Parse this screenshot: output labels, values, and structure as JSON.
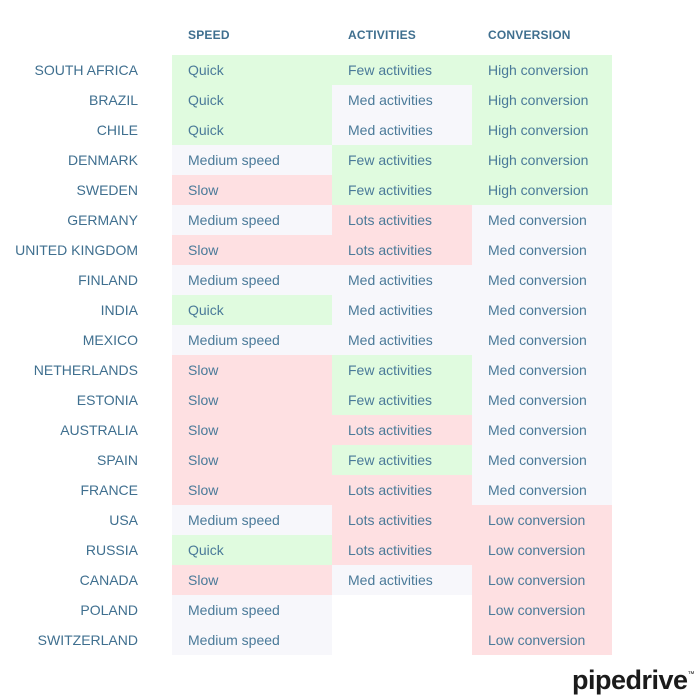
{
  "headers": {
    "speed": "SPEED",
    "activities": "ACTIVITIES",
    "conversion": "CONVERSION"
  },
  "rows": [
    {
      "country": "SOUTH AFRICA",
      "speed": "Quick",
      "speed_level": "good",
      "activities": "Few activities",
      "activities_level": "good",
      "conversion": "High conversion",
      "conversion_level": "good"
    },
    {
      "country": "BRAZIL",
      "speed": "Quick",
      "speed_level": "good",
      "activities": "Med activities",
      "activities_level": "med",
      "conversion": "High conversion",
      "conversion_level": "good"
    },
    {
      "country": "CHILE",
      "speed": "Quick",
      "speed_level": "good",
      "activities": "Med activities",
      "activities_level": "med",
      "conversion": "High conversion",
      "conversion_level": "good"
    },
    {
      "country": "DENMARK",
      "speed": "Medium speed",
      "speed_level": "med",
      "activities": "Few activities",
      "activities_level": "good",
      "conversion": "High conversion",
      "conversion_level": "good"
    },
    {
      "country": "SWEDEN",
      "speed": "Slow",
      "speed_level": "bad",
      "activities": "Few activities",
      "activities_level": "good",
      "conversion": "High conversion",
      "conversion_level": "good"
    },
    {
      "country": "GERMANY",
      "speed": "Medium speed",
      "speed_level": "med",
      "activities": "Lots activities",
      "activities_level": "bad",
      "conversion": "Med conversion",
      "conversion_level": "med"
    },
    {
      "country": "UNITED KINGDOM",
      "speed": "Slow",
      "speed_level": "bad",
      "activities": "Lots activities",
      "activities_level": "bad",
      "conversion": "Med conversion",
      "conversion_level": "med"
    },
    {
      "country": "FINLAND",
      "speed": "Medium speed",
      "speed_level": "med",
      "activities": "Med activities",
      "activities_level": "med",
      "conversion": "Med conversion",
      "conversion_level": "med"
    },
    {
      "country": "INDIA",
      "speed": "Quick",
      "speed_level": "good",
      "activities": "Med activities",
      "activities_level": "med",
      "conversion": "Med conversion",
      "conversion_level": "med"
    },
    {
      "country": "MEXICO",
      "speed": "Medium speed",
      "speed_level": "med",
      "activities": "Med activities",
      "activities_level": "med",
      "conversion": "Med conversion",
      "conversion_level": "med"
    },
    {
      "country": "NETHERLANDS",
      "speed": "Slow",
      "speed_level": "bad",
      "activities": "Few activities",
      "activities_level": "good",
      "conversion": "Med conversion",
      "conversion_level": "med"
    },
    {
      "country": "ESTONIA",
      "speed": "Slow",
      "speed_level": "bad",
      "activities": "Few activities",
      "activities_level": "good",
      "conversion": "Med conversion",
      "conversion_level": "med"
    },
    {
      "country": "AUSTRALIA",
      "speed": "Slow",
      "speed_level": "bad",
      "activities": "Lots activities",
      "activities_level": "bad",
      "conversion": "Med conversion",
      "conversion_level": "med"
    },
    {
      "country": "SPAIN",
      "speed": "Slow",
      "speed_level": "bad",
      "activities": "Few activities",
      "activities_level": "good",
      "conversion": "Med conversion",
      "conversion_level": "med"
    },
    {
      "country": "FRANCE",
      "speed": "Slow",
      "speed_level": "bad",
      "activities": "Lots activities",
      "activities_level": "bad",
      "conversion": "Med conversion",
      "conversion_level": "med"
    },
    {
      "country": "USA",
      "speed": "Medium speed",
      "speed_level": "med",
      "activities": "Lots activities",
      "activities_level": "bad",
      "conversion": "Low conversion",
      "conversion_level": "bad"
    },
    {
      "country": "RUSSIA",
      "speed": "Quick",
      "speed_level": "good",
      "activities": "Lots activities",
      "activities_level": "bad",
      "conversion": "Low conversion",
      "conversion_level": "bad"
    },
    {
      "country": "CANADA",
      "speed": "Slow",
      "speed_level": "bad",
      "activities": "Med activities",
      "activities_level": "med",
      "conversion": "Low conversion",
      "conversion_level": "bad"
    },
    {
      "country": "POLAND",
      "speed": "Medium speed",
      "speed_level": "med",
      "activities": "",
      "activities_level": "none",
      "conversion": "Low conversion",
      "conversion_level": "bad"
    },
    {
      "country": "SWITZERLAND",
      "speed": "Medium speed",
      "speed_level": "med",
      "activities": "",
      "activities_level": "none",
      "conversion": "Low conversion",
      "conversion_level": "bad"
    }
  ],
  "colors": {
    "good": "#e0fbdf",
    "med": "#f7f7fb",
    "bad": "#fee0e2",
    "text": "#3f6f8f"
  },
  "logo": {
    "text": "pipedrive",
    "mark": "™"
  }
}
